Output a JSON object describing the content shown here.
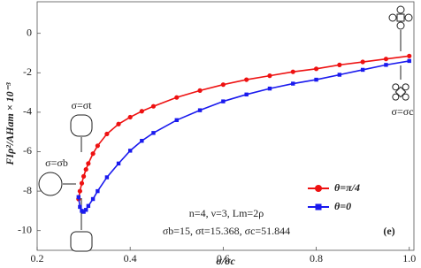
{
  "chart_data": {
    "type": "line",
    "x_label": "σ/σc",
    "y_label": "FIρ²/AHam × 10⁻³",
    "x": [
      0.289,
      0.292,
      0.296,
      0.3,
      0.305,
      0.31,
      0.32,
      0.33,
      0.35,
      0.375,
      0.4,
      0.425,
      0.45,
      0.5,
      0.55,
      0.6,
      0.65,
      0.7,
      0.75,
      0.8,
      0.85,
      0.9,
      0.95,
      1.0
    ],
    "series": [
      {
        "name": "θ=π/4",
        "color": "#ee1111",
        "marker": "circle",
        "values": [
          -8.4,
          -8.0,
          -7.6,
          -7.25,
          -6.9,
          -6.6,
          -6.1,
          -5.7,
          -5.1,
          -4.6,
          -4.25,
          -3.95,
          -3.7,
          -3.25,
          -2.9,
          -2.6,
          -2.35,
          -2.15,
          -1.95,
          -1.8,
          -1.6,
          -1.45,
          -1.3,
          -1.15
        ]
      },
      {
        "name": "θ=0",
        "color": "#1a1aee",
        "marker": "square",
        "values": [
          -8.3,
          -8.8,
          -9.0,
          -9.05,
          -8.95,
          -8.75,
          -8.4,
          -8.0,
          -7.3,
          -6.6,
          -5.95,
          -5.45,
          -5.05,
          -4.4,
          -3.9,
          -3.45,
          -3.1,
          -2.8,
          -2.55,
          -2.35,
          -2.1,
          -1.85,
          -1.6,
          -1.4
        ]
      }
    ],
    "xlim": [
      0.2,
      1.01
    ],
    "ylim": [
      -11,
      1.6
    ],
    "xticks": [
      {
        "value": 0.2,
        "label": "0.2"
      },
      {
        "value": 0.4,
        "label": "0.4"
      },
      {
        "value": 0.6,
        "label": "0.6"
      },
      {
        "value": 0.8,
        "label": "0.8"
      },
      {
        "value": 1.0,
        "label": "1.0"
      }
    ],
    "yticks": [
      -10,
      -8,
      -6,
      -4,
      -2,
      0
    ],
    "legend": "lower right",
    "annotations": [
      "n=4, ν=3, Lm=2ρ",
      "σb=15, σt=15.368, σc=51.844",
      "(e)",
      "σ=σt",
      "σ=σb",
      "σ=σc"
    ]
  }
}
